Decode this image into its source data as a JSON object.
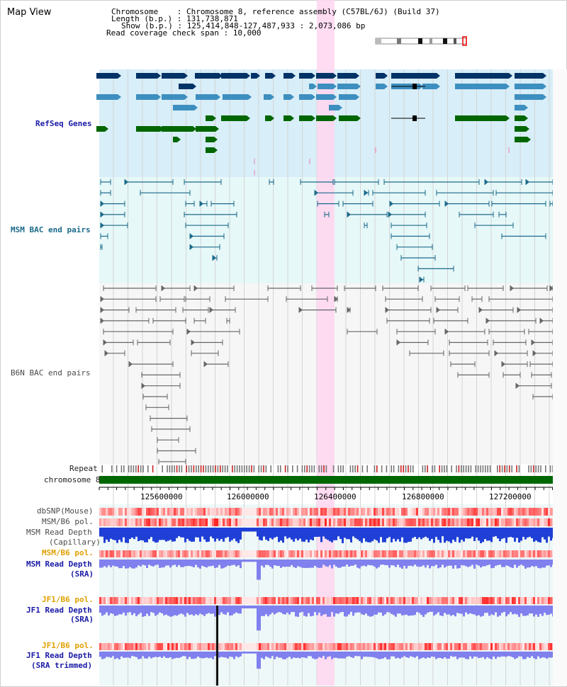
{
  "header": {
    "title": "Map View",
    "chromosome_line": "Chromosome    : Chromosome 8, reference assembly (C57BL/6J) (Build 37)",
    "length_line": "Length (b.p.) : 131,738,871",
    "show_line": "Show (b.p.) : 125,414,848-127,487,933 : 2,073,086 bp",
    "coverage_line": "Read coverage check span : 10,000"
  },
  "tracks": {
    "refseq": "RefSeq Genes",
    "msm_bac": "MSM BAC end pairs",
    "b6n_bac": "B6N BAC end pairs",
    "repeat": "Repeat",
    "chromosome": "chromosome 8",
    "dbsnp": "dbSNP(Mouse)",
    "msm_b6_pol_1": "MSM/B6 pol.",
    "msm_read_depth_cap_1": "MSM Read Depth",
    "msm_read_depth_cap_2": "(Capillary)",
    "msm_b6_pol_2": "MSM/B6 pol.",
    "msm_read_depth_sra_1": "MSM Read Depth",
    "msm_read_depth_sra_2": "(SRA)",
    "jf1_b6_pol_1": "JF1/B6 pol.",
    "jf1_read_depth_1": "JF1 Read Depth",
    "jf1_read_depth_2": "(SRA)",
    "jf1_b6_pol_2": "JF1/B6 pol.",
    "jf1_read_depth_trim_1": "JF1 Read Depth",
    "jf1_read_depth_trim_2": "(SRA trimmed)"
  },
  "axis": {
    "ticks": [
      "125600000",
      "126000000",
      "126400000",
      "126800000",
      "127200000"
    ]
  },
  "colors": {
    "gene_dark": "#003366",
    "gene_mid": "#3d8fbf",
    "gene_green": "#006600",
    "msm_bac": "#1b6a8a",
    "b6n_bac": "#666666",
    "refseq_bg": "#d8eef8",
    "msm_bg": "#e6f8f8",
    "highlight": "#ffd6f0",
    "chromosome_bar": "#006600"
  }
}
